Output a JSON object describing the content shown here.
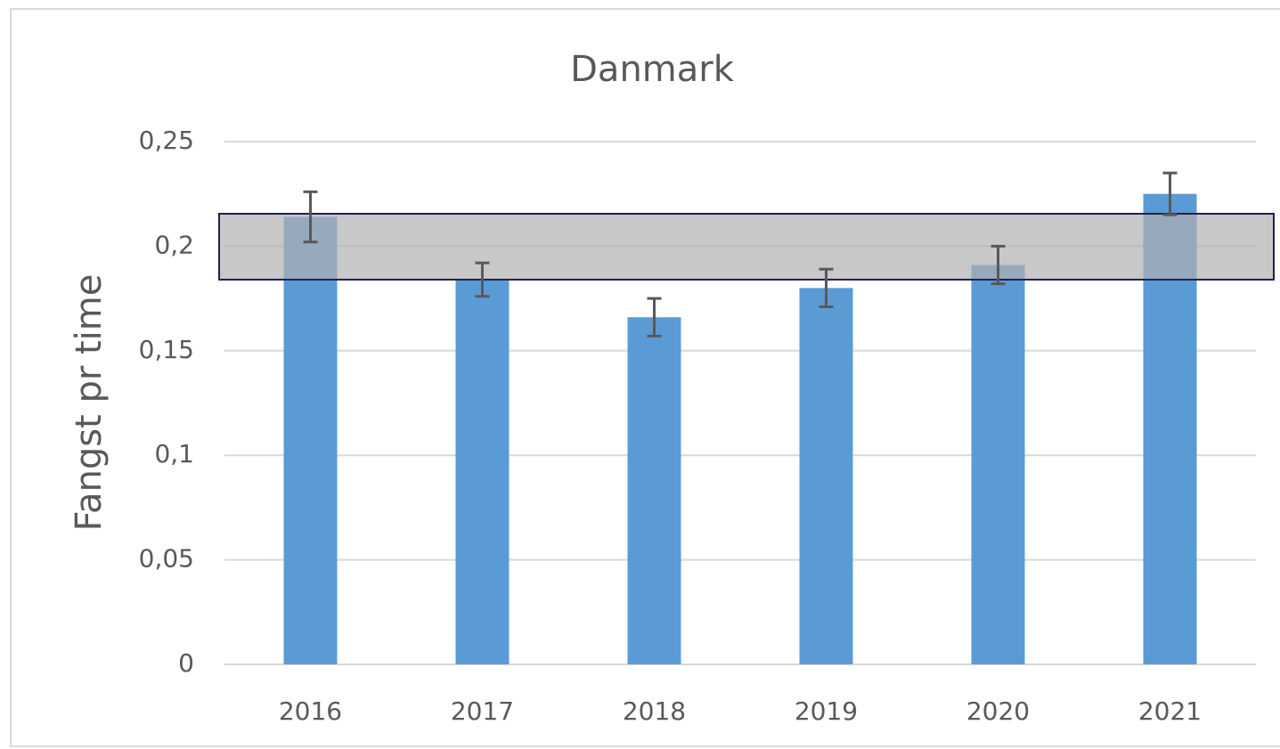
{
  "chart_data": {
    "type": "bar",
    "title": "Danmark",
    "ylabel": "Fangst pr time",
    "categories": [
      "2016",
      "2017",
      "2018",
      "2019",
      "2020",
      "2021"
    ],
    "values": [
      0.214,
      0.184,
      0.166,
      0.18,
      0.191,
      0.225
    ],
    "errors": [
      0.012,
      0.008,
      0.009,
      0.009,
      0.009,
      0.01
    ],
    "color": "#5b9bd5",
    "error_color": "#595959",
    "ylim": [
      0,
      0.25
    ],
    "yticks": [
      0,
      {
        "value": 0.05,
        "label": "0,05"
      },
      {
        "value": 0.1,
        "label": "0,1"
      },
      {
        "value": 0.15,
        "label": "0,15"
      },
      {
        "value": 0.2,
        "label": "0,2"
      },
      {
        "value": 0.25,
        "label": "0,25"
      }
    ],
    "grid": true,
    "band": {
      "low": 0.184,
      "high": 0.2155,
      "color": "#b0b0b0",
      "edge": "#1f1f4f"
    }
  }
}
